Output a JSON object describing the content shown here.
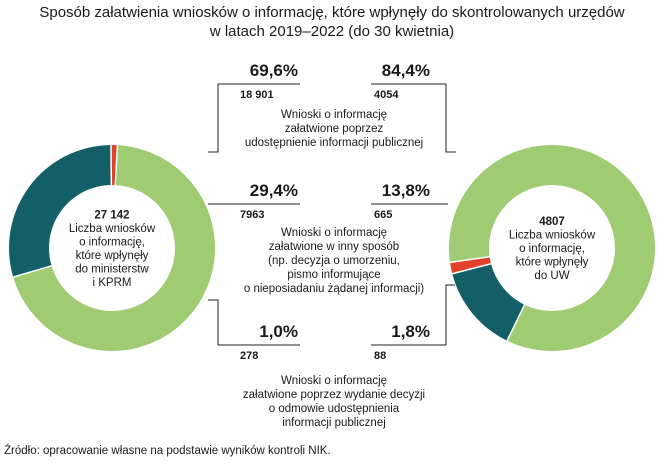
{
  "title": {
    "line1": "Sposób załatwienia wniosków o informację, które wpłynęły do skontrolowanych urzędów",
    "line2": "w latach 2019–2022 (do 30 kwietnia)"
  },
  "source": "Źródło: opracowanie własne na podstawie wyników kontroli NIK.",
  "colors": {
    "public": "#9fcc72",
    "other": "#135f67",
    "refusal": "#e2412c",
    "connector": "#222222"
  },
  "chart_data": [
    {
      "type": "pie",
      "variant": "donut",
      "center_value": "27 142",
      "center_label": [
        "Liczba wniosków",
        "o informację,",
        "które wpłynęły",
        "do ministerstw",
        "i KPRM"
      ],
      "slices": [
        {
          "category_index": 0,
          "percent": 69.6,
          "percent_label": "69,6%",
          "count": "18 901",
          "color": "#9fcc72"
        },
        {
          "category_index": 1,
          "percent": 29.4,
          "percent_label": "29,4%",
          "count": "7963",
          "color": "#135f67"
        },
        {
          "category_index": 2,
          "percent": 1.0,
          "percent_label": "1,0%",
          "count": "278",
          "color": "#e2412c"
        }
      ]
    },
    {
      "type": "pie",
      "variant": "donut",
      "center_value": "4807",
      "center_label": [
        "Liczba wniosków",
        "o informację,",
        "które wpłynęły",
        "do UW"
      ],
      "slices": [
        {
          "category_index": 0,
          "percent": 84.4,
          "percent_label": "84,4%",
          "count": "4054",
          "color": "#9fcc72"
        },
        {
          "category_index": 1,
          "percent": 13.8,
          "percent_label": "13,8%",
          "count": "665",
          "color": "#135f67"
        },
        {
          "category_index": 2,
          "percent": 1.8,
          "percent_label": "1,8%",
          "count": "88",
          "color": "#e2412c"
        }
      ]
    }
  ],
  "categories": [
    {
      "lines": [
        "Wnioski o informację",
        "załatwione poprzez",
        "udostępnienie informacji publicznej"
      ]
    },
    {
      "lines": [
        "Wnioski o informację",
        "załatwione w inny sposób",
        "(np. decyzja o umorzeniu,",
        "pismo informujące",
        "o nieposiadaniu żądanej informacji)"
      ]
    },
    {
      "lines": [
        "Wnioski o informację",
        "załatwione poprzez wydanie decyzji",
        "o odmowie udostępnienia",
        "informacji publicznej"
      ]
    }
  ]
}
